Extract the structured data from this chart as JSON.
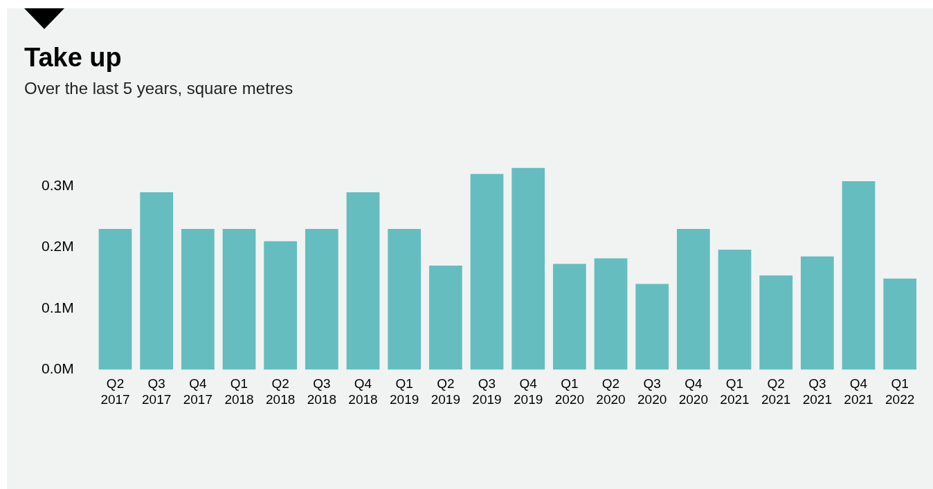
{
  "chart_data": {
    "type": "bar",
    "title": "Take up",
    "subtitle": "Over the last 5 years, square metres",
    "categories": [
      "Q2 2017",
      "Q3 2017",
      "Q4 2017",
      "Q1 2018",
      "Q2 2018",
      "Q3 2018",
      "Q4 2018",
      "Q1 2019",
      "Q2 2019",
      "Q3 2019",
      "Q4 2019",
      "Q1 2020",
      "Q2 2020",
      "Q3 2020",
      "Q4 2020",
      "Q1 2021",
      "Q2 2021",
      "Q3 2021",
      "Q4 2021",
      "Q1 2022"
    ],
    "values": [
      230000,
      290000,
      230000,
      230000,
      210000,
      230000,
      290000,
      230000,
      170000,
      320000,
      330000,
      173000,
      182000,
      140000,
      230000,
      196000,
      154000,
      185000,
      308000,
      149000
    ],
    "color": "#65bdbf",
    "ylim": [
      0,
      330000
    ],
    "yticks": [
      {
        "value": 0,
        "label": "0.0M"
      },
      {
        "value": 100000,
        "label": "0.1M"
      },
      {
        "value": 200000,
        "label": "0.2M"
      },
      {
        "value": 300000,
        "label": "0.3M"
      }
    ],
    "grid": false,
    "legend": false
  }
}
